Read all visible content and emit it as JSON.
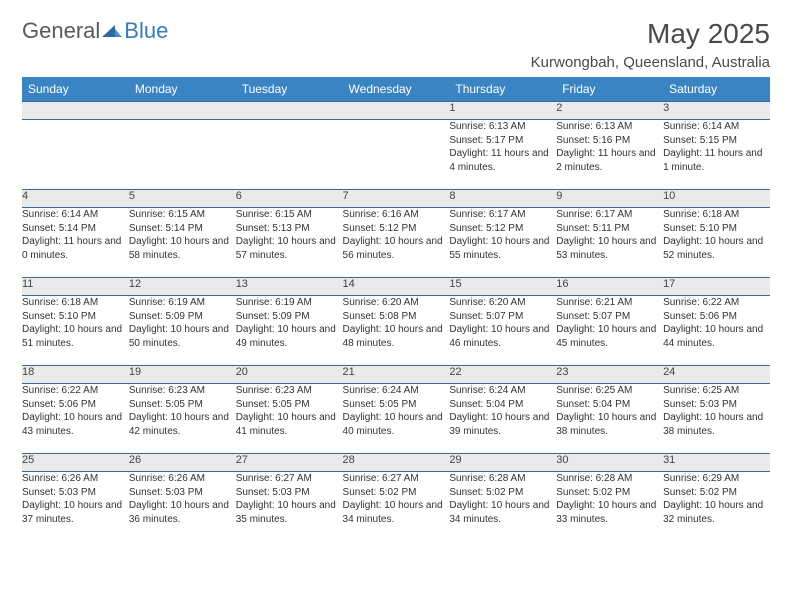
{
  "brand": {
    "part1": "General",
    "part2": "Blue"
  },
  "title": "May 2025",
  "location": "Kurwongbah, Queensland, Australia",
  "colors": {
    "header_bg": "#3a84c4",
    "header_text": "#ffffff",
    "daynum_bg": "#eaeaea",
    "row_border": "#3a6a9a",
    "brand_gray": "#5a5a5a",
    "brand_blue": "#3a7ab8"
  },
  "weekdays": [
    "Sunday",
    "Monday",
    "Tuesday",
    "Wednesday",
    "Thursday",
    "Friday",
    "Saturday"
  ],
  "weeks": [
    {
      "nums": [
        "",
        "",
        "",
        "",
        "1",
        "2",
        "3"
      ],
      "cells": [
        null,
        null,
        null,
        null,
        {
          "sunrise": "6:13 AM",
          "sunset": "5:17 PM",
          "daylight": "11 hours and 4 minutes."
        },
        {
          "sunrise": "6:13 AM",
          "sunset": "5:16 PM",
          "daylight": "11 hours and 2 minutes."
        },
        {
          "sunrise": "6:14 AM",
          "sunset": "5:15 PM",
          "daylight": "11 hours and 1 minute."
        }
      ]
    },
    {
      "nums": [
        "4",
        "5",
        "6",
        "7",
        "8",
        "9",
        "10"
      ],
      "cells": [
        {
          "sunrise": "6:14 AM",
          "sunset": "5:14 PM",
          "daylight": "11 hours and 0 minutes."
        },
        {
          "sunrise": "6:15 AM",
          "sunset": "5:14 PM",
          "daylight": "10 hours and 58 minutes."
        },
        {
          "sunrise": "6:15 AM",
          "sunset": "5:13 PM",
          "daylight": "10 hours and 57 minutes."
        },
        {
          "sunrise": "6:16 AM",
          "sunset": "5:12 PM",
          "daylight": "10 hours and 56 minutes."
        },
        {
          "sunrise": "6:17 AM",
          "sunset": "5:12 PM",
          "daylight": "10 hours and 55 minutes."
        },
        {
          "sunrise": "6:17 AM",
          "sunset": "5:11 PM",
          "daylight": "10 hours and 53 minutes."
        },
        {
          "sunrise": "6:18 AM",
          "sunset": "5:10 PM",
          "daylight": "10 hours and 52 minutes."
        }
      ]
    },
    {
      "nums": [
        "11",
        "12",
        "13",
        "14",
        "15",
        "16",
        "17"
      ],
      "cells": [
        {
          "sunrise": "6:18 AM",
          "sunset": "5:10 PM",
          "daylight": "10 hours and 51 minutes."
        },
        {
          "sunrise": "6:19 AM",
          "sunset": "5:09 PM",
          "daylight": "10 hours and 50 minutes."
        },
        {
          "sunrise": "6:19 AM",
          "sunset": "5:09 PM",
          "daylight": "10 hours and 49 minutes."
        },
        {
          "sunrise": "6:20 AM",
          "sunset": "5:08 PM",
          "daylight": "10 hours and 48 minutes."
        },
        {
          "sunrise": "6:20 AM",
          "sunset": "5:07 PM",
          "daylight": "10 hours and 46 minutes."
        },
        {
          "sunrise": "6:21 AM",
          "sunset": "5:07 PM",
          "daylight": "10 hours and 45 minutes."
        },
        {
          "sunrise": "6:22 AM",
          "sunset": "5:06 PM",
          "daylight": "10 hours and 44 minutes."
        }
      ]
    },
    {
      "nums": [
        "18",
        "19",
        "20",
        "21",
        "22",
        "23",
        "24"
      ],
      "cells": [
        {
          "sunrise": "6:22 AM",
          "sunset": "5:06 PM",
          "daylight": "10 hours and 43 minutes."
        },
        {
          "sunrise": "6:23 AM",
          "sunset": "5:05 PM",
          "daylight": "10 hours and 42 minutes."
        },
        {
          "sunrise": "6:23 AM",
          "sunset": "5:05 PM",
          "daylight": "10 hours and 41 minutes."
        },
        {
          "sunrise": "6:24 AM",
          "sunset": "5:05 PM",
          "daylight": "10 hours and 40 minutes."
        },
        {
          "sunrise": "6:24 AM",
          "sunset": "5:04 PM",
          "daylight": "10 hours and 39 minutes."
        },
        {
          "sunrise": "6:25 AM",
          "sunset": "5:04 PM",
          "daylight": "10 hours and 38 minutes."
        },
        {
          "sunrise": "6:25 AM",
          "sunset": "5:03 PM",
          "daylight": "10 hours and 38 minutes."
        }
      ]
    },
    {
      "nums": [
        "25",
        "26",
        "27",
        "28",
        "29",
        "30",
        "31"
      ],
      "cells": [
        {
          "sunrise": "6:26 AM",
          "sunset": "5:03 PM",
          "daylight": "10 hours and 37 minutes."
        },
        {
          "sunrise": "6:26 AM",
          "sunset": "5:03 PM",
          "daylight": "10 hours and 36 minutes."
        },
        {
          "sunrise": "6:27 AM",
          "sunset": "5:03 PM",
          "daylight": "10 hours and 35 minutes."
        },
        {
          "sunrise": "6:27 AM",
          "sunset": "5:02 PM",
          "daylight": "10 hours and 34 minutes."
        },
        {
          "sunrise": "6:28 AM",
          "sunset": "5:02 PM",
          "daylight": "10 hours and 34 minutes."
        },
        {
          "sunrise": "6:28 AM",
          "sunset": "5:02 PM",
          "daylight": "10 hours and 33 minutes."
        },
        {
          "sunrise": "6:29 AM",
          "sunset": "5:02 PM",
          "daylight": "10 hours and 32 minutes."
        }
      ]
    }
  ],
  "labels": {
    "sunrise": "Sunrise: ",
    "sunset": "Sunset: ",
    "daylight": "Daylight: "
  }
}
